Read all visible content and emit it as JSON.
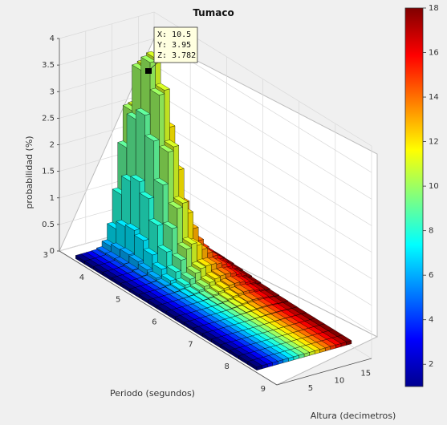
{
  "chart_data": {
    "type": "bar3d",
    "title": "Tumaco",
    "xlabel": "Periodo (segundos)",
    "ylabel": "Altura (decimetros)",
    "zlabel": "probabilidad (%)",
    "xlim": [
      3,
      9
    ],
    "ylim": [
      0,
      18
    ],
    "zlim": [
      0,
      4
    ],
    "x_ticks": [
      "3",
      "4",
      "5",
      "6",
      "7",
      "8",
      "9"
    ],
    "y_ticks": [
      "5",
      "10",
      "15"
    ],
    "z_ticks": [
      "0",
      "0.5",
      "1",
      "1.5",
      "2",
      "2.5",
      "3",
      "3.5",
      "4"
    ],
    "colorbar": {
      "colormap": "jet",
      "range": [
        1,
        18
      ],
      "ticks": [
        "2",
        "4",
        "6",
        "8",
        "10",
        "12",
        "14",
        "16",
        "18"
      ]
    },
    "datatip": {
      "x_label": "X: 10.5",
      "y_label": "Y: 3.95",
      "z_label": "Z: 3.782",
      "x": 10.5,
      "y": 3.95,
      "z": 3.782
    },
    "bars_note": "",
    "periods": [
      3.5,
      3.75,
      4.0,
      4.25,
      4.5,
      4.75,
      5.0,
      5.25,
      5.5,
      5.75,
      6.0,
      6.25,
      6.5,
      6.75,
      7.0,
      7.25,
      7.5,
      7.75,
      8.0,
      8.25
    ],
    "heights": [
      1,
      2,
      3,
      4,
      5,
      6,
      7,
      8,
      9,
      10,
      11,
      12,
      13,
      14,
      15,
      16,
      17,
      18
    ],
    "peak_period": 3.95,
    "peak_height": 10.5,
    "peak_value": 3.782
  }
}
